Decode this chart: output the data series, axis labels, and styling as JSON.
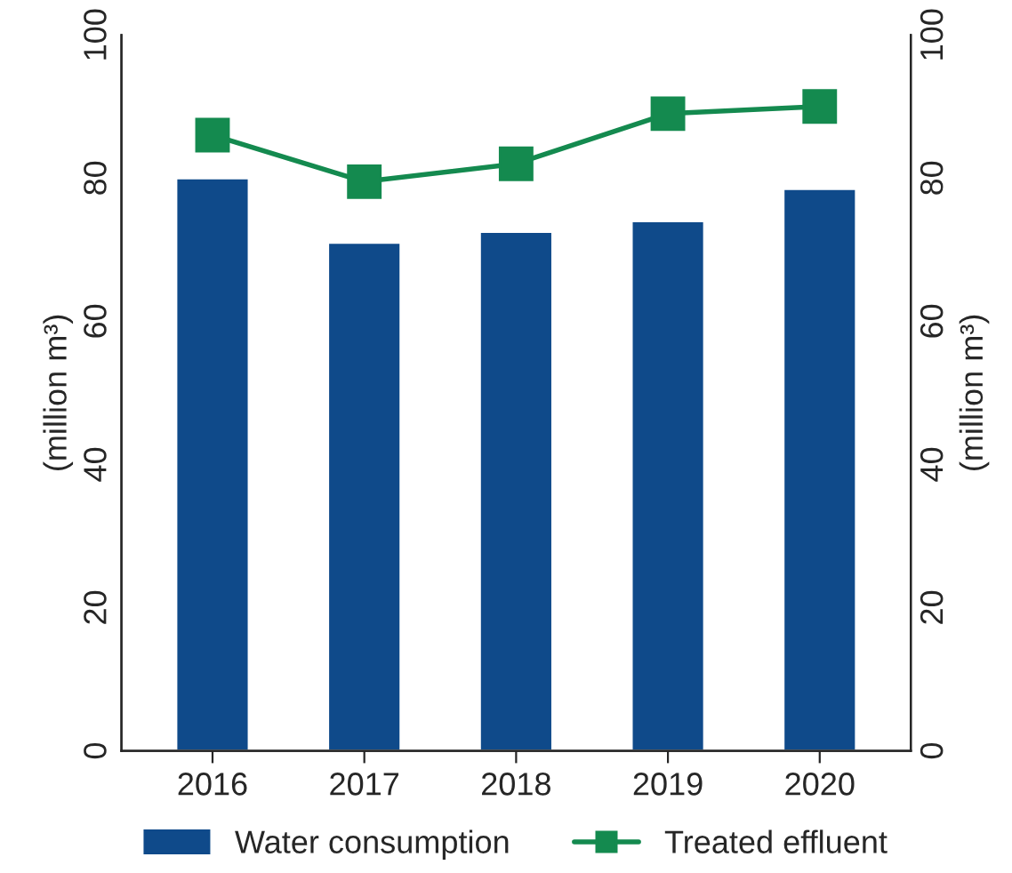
{
  "chart_data": {
    "type": "bar",
    "categories": [
      "2016",
      "2017",
      "2018",
      "2019",
      "2020"
    ],
    "series": [
      {
        "name": "Water consumption",
        "color": "#0f4a8a",
        "values": [
          80,
          71,
          72.5,
          74,
          78.5
        ]
      },
      {
        "name": "Treated effluent",
        "type": "line",
        "color": "#148a4f",
        "marker": "square",
        "values": [
          86,
          79.5,
          82,
          89,
          90
        ]
      }
    ],
    "ylabel": "(million m³)",
    "y2label": "(million m³)",
    "ylim": [
      0,
      100
    ],
    "yticks": [
      0,
      20,
      40,
      60,
      80,
      100
    ],
    "y2lim": [
      0,
      100
    ],
    "y2ticks": [
      0,
      20,
      40,
      60,
      80,
      100
    ],
    "legend": "bottom",
    "grid": false
  }
}
